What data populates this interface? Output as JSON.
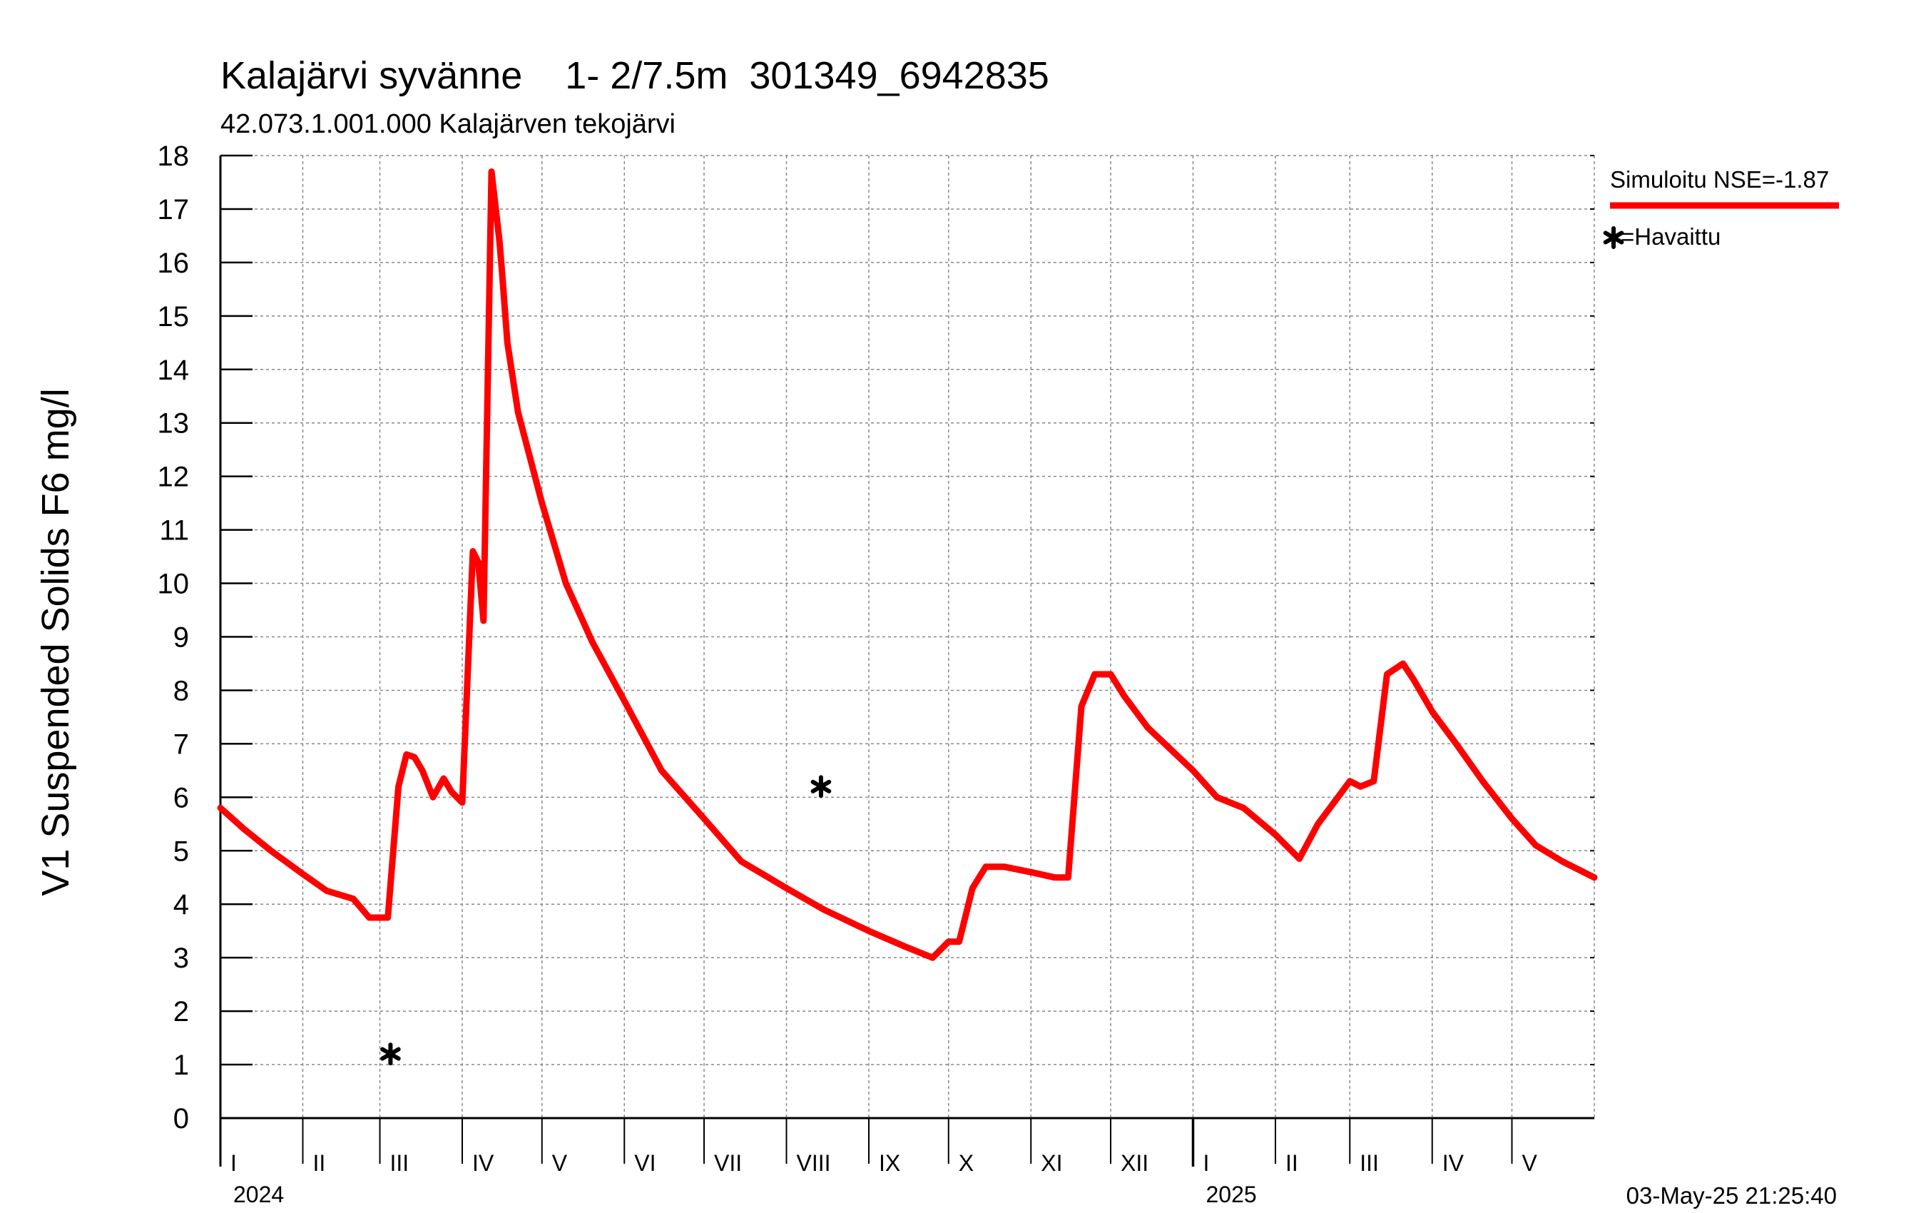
{
  "chart_data": {
    "type": "line",
    "title": "Kalajärvi syvänne    1- 2/7.5m  301349_6942835",
    "subtitle": "42.073.1.001.000 Kalajärven tekojärvi",
    "ylabel": "V1 Suspended Solids F6 mg/l",
    "xlabel": "",
    "ylim": [
      0,
      18
    ],
    "yticks": [
      0,
      1,
      2,
      3,
      4,
      5,
      6,
      7,
      8,
      9,
      10,
      11,
      12,
      13,
      14,
      15,
      16,
      17,
      18
    ],
    "xlim": [
      "2024-01-01",
      "2025-06-01"
    ],
    "month_labels": [
      "I",
      "II",
      "III",
      "IV",
      "V",
      "VI",
      "VII",
      "VIII",
      "IX",
      "X",
      "XI",
      "XII",
      "I",
      "II",
      "III",
      "IV",
      "V"
    ],
    "year_labels": [
      {
        "label": "2024",
        "date": "2024-01-01"
      },
      {
        "label": "2025",
        "date": "2025-01-01"
      }
    ],
    "grid": true,
    "legend": "right-top",
    "timestamp": "03-May-25 21:25:40",
    "series": [
      {
        "name": "Simuloitu NSE=-1.87",
        "type": "line",
        "color": "#ff0000",
        "x": [
          "2024-01-01",
          "2024-01-10",
          "2024-01-20",
          "2024-01-31",
          "2024-02-10",
          "2024-02-20",
          "2024-02-26",
          "2024-02-29",
          "2024-03-04",
          "2024-03-08",
          "2024-03-11",
          "2024-03-14",
          "2024-03-17",
          "2024-03-21",
          "2024-03-25",
          "2024-03-28",
          "2024-04-01",
          "2024-04-05",
          "2024-04-07",
          "2024-04-09",
          "2024-04-12",
          "2024-04-15",
          "2024-04-16",
          "2024-04-18",
          "2024-04-22",
          "2024-05-01",
          "2024-05-10",
          "2024-05-20",
          "2024-06-01",
          "2024-06-15",
          "2024-07-01",
          "2024-07-15",
          "2024-08-01",
          "2024-08-15",
          "2024-09-01",
          "2024-09-15",
          "2024-09-25",
          "2024-10-01",
          "2024-10-05",
          "2024-10-10",
          "2024-10-15",
          "2024-10-22",
          "2024-11-01",
          "2024-11-10",
          "2024-11-15",
          "2024-11-20",
          "2024-11-25",
          "2024-12-01",
          "2024-12-06",
          "2024-12-15",
          "2025-01-01",
          "2025-01-10",
          "2025-01-20",
          "2025-02-01",
          "2025-02-10",
          "2025-02-17",
          "2025-03-01",
          "2025-03-05",
          "2025-03-10",
          "2025-03-15",
          "2025-03-21",
          "2025-03-25",
          "2025-04-01",
          "2025-04-10",
          "2025-04-20",
          "2025-05-01",
          "2025-05-10",
          "2025-05-20",
          "2025-06-01"
        ],
        "y": [
          5.8,
          5.4,
          5.0,
          4.6,
          4.25,
          4.1,
          3.75,
          3.75,
          3.75,
          6.2,
          6.8,
          6.75,
          6.5,
          6.0,
          6.35,
          6.1,
          5.9,
          10.6,
          10.4,
          9.3,
          17.7,
          16.4,
          15.8,
          14.5,
          13.2,
          11.5,
          10.0,
          8.9,
          7.8,
          6.5,
          5.6,
          4.8,
          4.3,
          3.9,
          3.5,
          3.2,
          3.0,
          3.3,
          3.3,
          4.3,
          4.7,
          4.7,
          4.6,
          4.5,
          4.5,
          7.7,
          8.3,
          8.3,
          7.9,
          7.3,
          6.5,
          6.0,
          5.8,
          5.3,
          4.85,
          5.5,
          6.3,
          6.2,
          6.3,
          8.3,
          8.5,
          8.2,
          7.6,
          7.0,
          6.3,
          5.6,
          5.1,
          4.8,
          4.5
        ]
      },
      {
        "name": "Havaittu",
        "type": "scatter",
        "marker": "asterisk",
        "color": "#000000",
        "x": [
          "2024-03-05",
          "2024-08-14"
        ],
        "y": [
          1.2,
          6.2
        ]
      }
    ]
  }
}
